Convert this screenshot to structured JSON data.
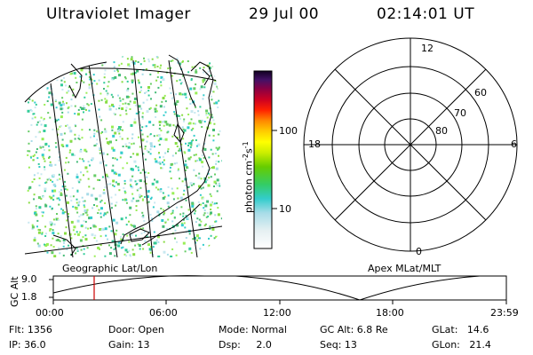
{
  "header": {
    "instrument": "Ultraviolet Imager",
    "date": "29 Jul 00",
    "time": "02:14:01 UT"
  },
  "colorbar": {
    "unit_label": "photon cm",
    "unit_exp1": "-2",
    "unit_s": "s",
    "unit_exp2": "-1",
    "ticks": [
      "100",
      "10"
    ]
  },
  "polar_plot": {
    "labels": {
      "top": "12",
      "left": "18",
      "right": "6",
      "bottom": "0"
    },
    "lat_labels": [
      "60",
      "70",
      "80"
    ]
  },
  "image_panels": {
    "left_label": "Geographic Lat/Lon",
    "right_label": "Apex MLat/MLT"
  },
  "orbit_plot": {
    "ylabel": "GC Alt",
    "yticks": [
      "9.0",
      "1.8"
    ],
    "xticks": [
      "00:00",
      "06:00",
      "12:00",
      "18:00",
      "23:59"
    ]
  },
  "info": {
    "flt": "Flt: 1356",
    "ip": "IP: 36.0",
    "door": "Door: Open",
    "gain": "Gain: 13",
    "mode": "Mode: Normal",
    "dsp": "Dsp:     2.0",
    "gcalt": "GC Alt: 6.8 Re",
    "seq": "Seq: 13",
    "glat": "GLat:   14.6",
    "glon": "GLon:   21.4"
  },
  "colors": {
    "marker": "#cc0000",
    "background": "#ffffff",
    "lines": "#000000"
  }
}
